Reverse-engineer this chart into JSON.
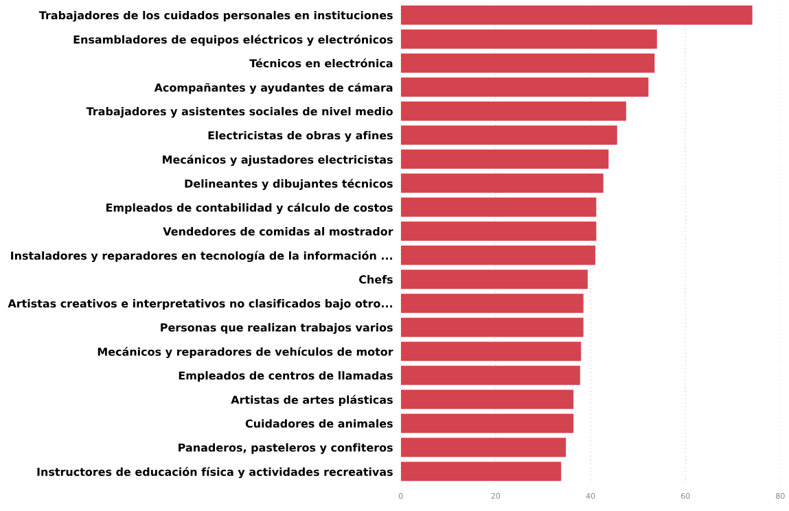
{
  "chart_data": {
    "type": "bar",
    "orientation": "horizontal",
    "categories": [
      "Trabajadores de los cuidados personales en instituciones",
      "Ensambladores de equipos eléctricos y electrónicos",
      "Técnicos en electrónica",
      "Acompañantes y ayudantes de cámara",
      "Trabajadores y asistentes sociales de nivel medio",
      "Electricistas de obras y afines",
      "Mecánicos y ajustadores electricistas",
      "Delineantes y dibujantes técnicos",
      "Empleados de contabilidad y cálculo de costos",
      "Vendedores de comidas al mostrador",
      "Instaladores y reparadores en tecnología de la información ...",
      "Chefs",
      "Artistas creativos e interpretativos no clasificados bajo otro...",
      "Personas que realizan trabajos varios",
      "Mecánicos y reparadores de vehículos de motor",
      "Empleados de centros de llamadas",
      "Artistas de artes plásticas",
      "Cuidadores de animales",
      "Panaderos, pasteleros y confiteros",
      "Instructores de educación física y actividades recreativas"
    ],
    "values": [
      74.1,
      54.0,
      53.5,
      52.2,
      47.5,
      45.6,
      43.8,
      42.7,
      41.2,
      41.2,
      41.0,
      39.4,
      38.5,
      38.5,
      38.0,
      37.8,
      36.4,
      36.4,
      34.8,
      33.8
    ],
    "color": "#d44450",
    "xlim": [
      0,
      80
    ],
    "xticks": [
      0,
      20,
      40,
      60,
      80
    ],
    "grid": "x"
  }
}
